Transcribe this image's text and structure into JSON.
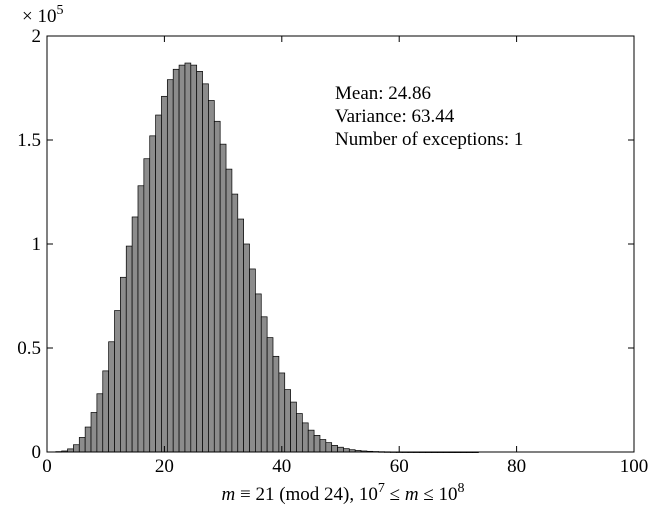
{
  "chart_data": {
    "type": "bar",
    "title": "",
    "xlabel": {
      "m": "m",
      "mid": " ≡ 21 (mod 24), 10",
      "exp1": "7",
      "mid2": " ≤ ",
      "m2": "m",
      "mid3": " ≤ 10",
      "exp2": "8"
    },
    "ylabel": "",
    "y_scale_note": {
      "base": "× 10",
      "exp": "5"
    },
    "xlim": [
      0,
      100
    ],
    "ylim": [
      0,
      200000
    ],
    "xticks": [
      0,
      20,
      40,
      60,
      80,
      100
    ],
    "xtick_labels": [
      "0",
      "20",
      "40",
      "60",
      "80",
      "100"
    ],
    "yticks": [
      0,
      50000,
      100000,
      150000,
      200000
    ],
    "ytick_labels": [
      "0",
      "0.5",
      "1",
      "1.5",
      "2"
    ],
    "grid": false,
    "annotations": [
      "Mean: 24.86",
      "Variance: 63.44",
      "Number of exceptions: 1"
    ],
    "bar_width": 1,
    "x": [
      1,
      2,
      3,
      4,
      5,
      6,
      7,
      8,
      9,
      10,
      11,
      12,
      13,
      14,
      15,
      16,
      17,
      18,
      19,
      20,
      21,
      22,
      23,
      24,
      25,
      26,
      27,
      28,
      29,
      30,
      31,
      32,
      33,
      34,
      35,
      36,
      37,
      38,
      39,
      40,
      41,
      42,
      43,
      44,
      45,
      46,
      47,
      48,
      49,
      50,
      51,
      52,
      53,
      54,
      55,
      56,
      57,
      58,
      59,
      60,
      61,
      62,
      63,
      64,
      65,
      66,
      67,
      68,
      69,
      70,
      71,
      72,
      73,
      74,
      75,
      76,
      77,
      78,
      79,
      80,
      81,
      82,
      83,
      84,
      85,
      86,
      87,
      88,
      89,
      90,
      91,
      92,
      93,
      94,
      95,
      96,
      97,
      98,
      99
    ],
    "values": [
      0,
      200,
      500,
      1500,
      3500,
      7000,
      12000,
      19000,
      28000,
      39000,
      53000,
      68000,
      84000,
      99000,
      113000,
      128000,
      141000,
      152000,
      162000,
      171000,
      179000,
      184000,
      186000,
      187000,
      186000,
      183000,
      177000,
      169000,
      159000,
      148000,
      136000,
      124000,
      112000,
      100000,
      88000,
      76000,
      65000,
      55000,
      46000,
      38000,
      30000,
      24000,
      18500,
      14000,
      10500,
      8000,
      6000,
      4500,
      3200,
      2300,
      1600,
      1100,
      750,
      500,
      330,
      220,
      150,
      100,
      70,
      50,
      35,
      25,
      18,
      12,
      8,
      5,
      4,
      3,
      2,
      1,
      1,
      1,
      1,
      0,
      0,
      0,
      0,
      0,
      0,
      0,
      0,
      0,
      0,
      0,
      0,
      0,
      0,
      0,
      0,
      0,
      0,
      0,
      0,
      0,
      0,
      0,
      0,
      0,
      0
    ]
  }
}
